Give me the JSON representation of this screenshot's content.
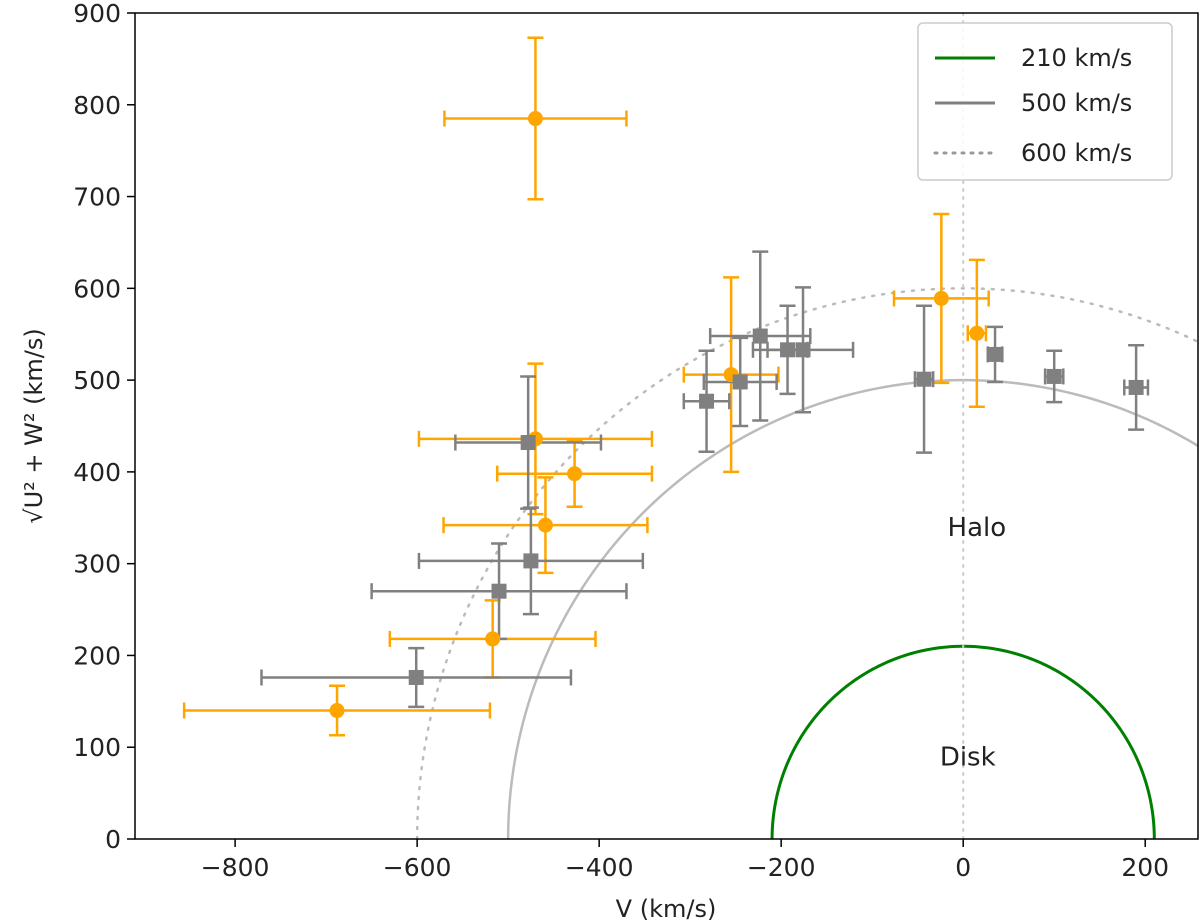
{
  "chart_data": {
    "type": "scatter",
    "xlabel": "V (km/s)",
    "ylabel": "√U² + W²  (km/s)",
    "xlim": [
      -910,
      258
    ],
    "ylim": [
      0,
      900
    ],
    "xticks": [
      -800,
      -600,
      -400,
      -200,
      0,
      200
    ],
    "yticks": [
      0,
      100,
      200,
      300,
      400,
      500,
      600,
      700,
      800,
      900
    ],
    "annotations": [
      {
        "text": "Halo",
        "x": 15,
        "y": 340
      },
      {
        "text": "Disk",
        "x": 5,
        "y": 90
      }
    ],
    "reference_lines": [
      {
        "name": "210 km/s",
        "radius": 210,
        "color": "#008000",
        "style": "solid"
      },
      {
        "name": "500 km/s",
        "radius": 500,
        "color": "#bbbbbb",
        "style": "solid"
      },
      {
        "name": "600 km/s",
        "radius": 600,
        "color": "#bbbbbb",
        "style": "dotted"
      },
      {
        "name": "vertical",
        "x": 0,
        "color": "#cccccc",
        "style": "dotted"
      }
    ],
    "legend": {
      "position": "top-right",
      "entries": [
        {
          "label": "210 km/s",
          "color": "#008000",
          "style": "solid"
        },
        {
          "label": "500 km/s",
          "color": "#808080",
          "style": "solid"
        },
        {
          "label": "600 km/s",
          "color": "#999999",
          "style": "dotted"
        }
      ]
    },
    "series": [
      {
        "name": "orange",
        "marker": "circle",
        "color": "#ffa500",
        "points": [
          {
            "x": -470,
            "y": 785,
            "xerr": 100,
            "yerr": 88
          },
          {
            "x": -688,
            "y": 140,
            "xerr": 168,
            "yerr": 27
          },
          {
            "x": -517,
            "y": 218,
            "xerr": 113,
            "yerr": 42
          },
          {
            "x": -459,
            "y": 342,
            "xerr": 112,
            "yerr": 52
          },
          {
            "x": -470,
            "y": 436,
            "xerr": 128,
            "yerr": 82
          },
          {
            "x": -427,
            "y": 398,
            "xerr": 85,
            "yerr": 36
          },
          {
            "x": -255,
            "y": 506,
            "xerr": 52,
            "yerr": 106
          },
          {
            "x": -24,
            "y": 589,
            "xerr": 52,
            "yerr": 92
          },
          {
            "x": 15,
            "y": 551,
            "xerr": 10,
            "yerr": 80
          }
        ]
      },
      {
        "name": "gray",
        "marker": "square",
        "color": "#808080",
        "points": [
          {
            "x": -601,
            "y": 176,
            "xerr": 170,
            "yerr": 32
          },
          {
            "x": -510,
            "y": 270,
            "xerr": 140,
            "yerr": 52
          },
          {
            "x": -475,
            "y": 303,
            "xerr": 123,
            "yerr": 58
          },
          {
            "x": -478,
            "y": 432,
            "xerr": 80,
            "yerr": 72
          },
          {
            "x": -282,
            "y": 477,
            "xerr": 25,
            "yerr": 55
          },
          {
            "x": -245,
            "y": 498,
            "xerr": 40,
            "yerr": 48
          },
          {
            "x": -223,
            "y": 548,
            "xerr": 55,
            "yerr": 92
          },
          {
            "x": -193,
            "y": 533,
            "xerr": 22,
            "yerr": 48
          },
          {
            "x": -176,
            "y": 533,
            "xerr": 55,
            "yerr": 68
          },
          {
            "x": -43,
            "y": 501,
            "xerr": 10,
            "yerr": 80
          },
          {
            "x": 35,
            "y": 528,
            "xerr": 8,
            "yerr": 30
          },
          {
            "x": 100,
            "y": 504,
            "xerr": 10,
            "yerr": 28
          },
          {
            "x": 190,
            "y": 492,
            "xerr": 13,
            "yerr": 46
          }
        ]
      }
    ]
  }
}
